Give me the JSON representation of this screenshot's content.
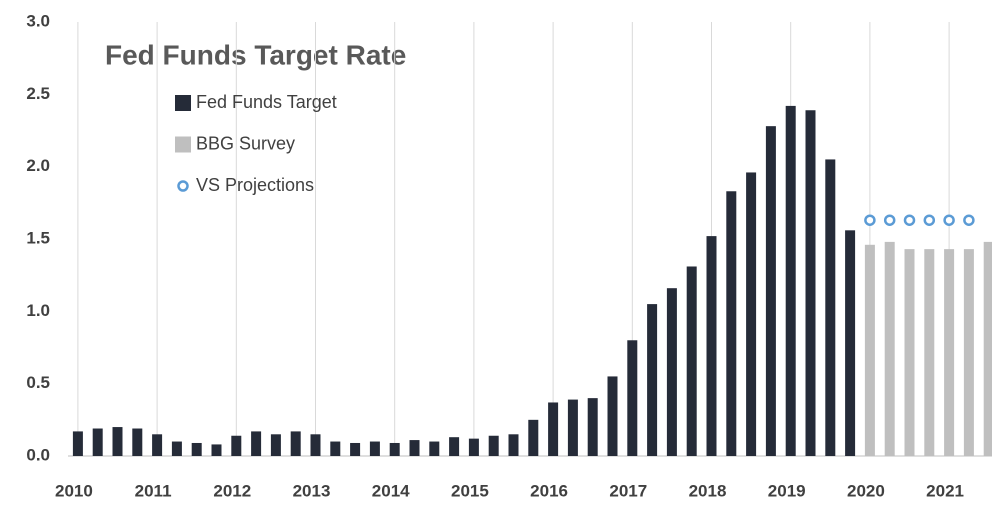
{
  "chart_data": {
    "type": "bar",
    "title": "Fed Funds Target Rate",
    "categories": [
      "2010",
      null,
      null,
      null,
      "2011",
      null,
      null,
      null,
      "2012",
      null,
      null,
      null,
      "2013",
      null,
      null,
      null,
      "2014",
      null,
      null,
      null,
      "2015",
      null,
      null,
      null,
      "2016",
      null,
      null,
      null,
      "2017",
      null,
      null,
      null,
      "2018",
      null,
      null,
      null,
      "2019",
      null,
      null,
      null,
      "2020",
      null,
      null,
      null,
      "2021",
      null,
      null
    ],
    "series": [
      {
        "name": "Fed Funds Target",
        "color": "#252b38",
        "values": [
          0.17,
          0.19,
          0.2,
          0.19,
          0.15,
          0.1,
          0.09,
          0.08,
          0.14,
          0.17,
          0.15,
          0.17,
          0.15,
          0.1,
          0.09,
          0.1,
          0.09,
          0.11,
          0.1,
          0.13,
          0.12,
          0.14,
          0.15,
          0.25,
          0.37,
          0.39,
          0.4,
          0.55,
          0.8,
          1.05,
          1.16,
          1.31,
          1.52,
          1.83,
          1.96,
          2.28,
          2.42,
          2.39,
          2.05,
          1.56,
          null,
          null,
          null,
          null,
          null,
          null,
          null
        ]
      },
      {
        "name": "BBG Survey",
        "color": "#bfbfbf",
        "values": [
          null,
          null,
          null,
          null,
          null,
          null,
          null,
          null,
          null,
          null,
          null,
          null,
          null,
          null,
          null,
          null,
          null,
          null,
          null,
          null,
          null,
          null,
          null,
          null,
          null,
          null,
          null,
          null,
          null,
          null,
          null,
          null,
          null,
          null,
          null,
          null,
          null,
          null,
          null,
          null,
          1.46,
          1.48,
          1.43,
          1.43,
          1.43,
          1.43,
          1.48
        ]
      },
      {
        "name": "VS Projections",
        "color": "#5b9bd5",
        "type": "scatter",
        "values": [
          null,
          null,
          null,
          null,
          null,
          null,
          null,
          null,
          null,
          null,
          null,
          null,
          null,
          null,
          null,
          null,
          null,
          null,
          null,
          null,
          null,
          null,
          null,
          null,
          null,
          null,
          null,
          null,
          null,
          null,
          null,
          null,
          null,
          null,
          null,
          null,
          null,
          null,
          null,
          null,
          1.63,
          1.63,
          1.63,
          1.63,
          1.63,
          1.63,
          null
        ]
      }
    ],
    "ylim": [
      0,
      3
    ],
    "yticks": [
      {
        "value": 0,
        "label": "0.0"
      },
      0.5,
      {
        "value": 1,
        "label": "1.0"
      },
      1.5,
      {
        "value": 2,
        "label": "2.0"
      },
      2.5,
      {
        "value": 3,
        "label": "3.0"
      }
    ],
    "grid": true
  }
}
